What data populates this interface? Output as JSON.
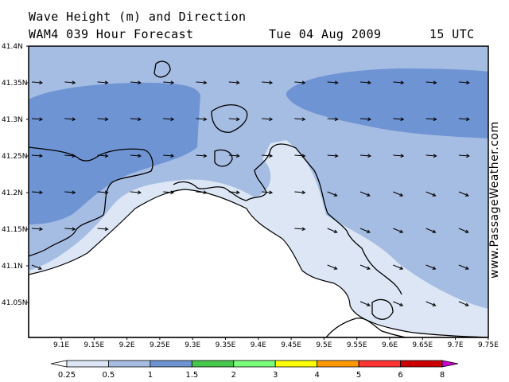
{
  "title": {
    "line1": "Wave Height (m) and Direction",
    "line2": "WAM4 039 Hour Forecast",
    "date": "Tue 04 Aug 2009",
    "time": "15 UTC"
  },
  "credit": "www.PassageWeather.com",
  "lat_labels": [
    "41.4N",
    "41.35N",
    "41.3N",
    "41.25N",
    "41.2N",
    "41.15N",
    "41.1N",
    "41.05N"
  ],
  "lon_labels": [
    "9.1E",
    "9.15E",
    "9.2E",
    "9.25E",
    "9.3E",
    "9.35E",
    "9.4E",
    "9.45E",
    "9.5E",
    "9.55E",
    "9.6E",
    "9.65E",
    "9.7E",
    "9.75E"
  ],
  "legend": {
    "labels": [
      "0.25",
      "0.5",
      "1",
      "1.5",
      "2",
      "3",
      "4",
      "5",
      "6",
      "8"
    ],
    "colors": [
      "#ffffff",
      "#dce6f5",
      "#a6bde3",
      "#6f94d4",
      "#46c84a",
      "#7aff7a",
      "#ffff00",
      "#ff9900",
      "#ff3333",
      "#cc0000",
      "#cc00cc"
    ]
  },
  "colors": {
    "sea_light": "#dce6f5",
    "sea_mid": "#a6bde3",
    "sea_dark": "#6f94d4",
    "land": "#ffffff"
  }
}
